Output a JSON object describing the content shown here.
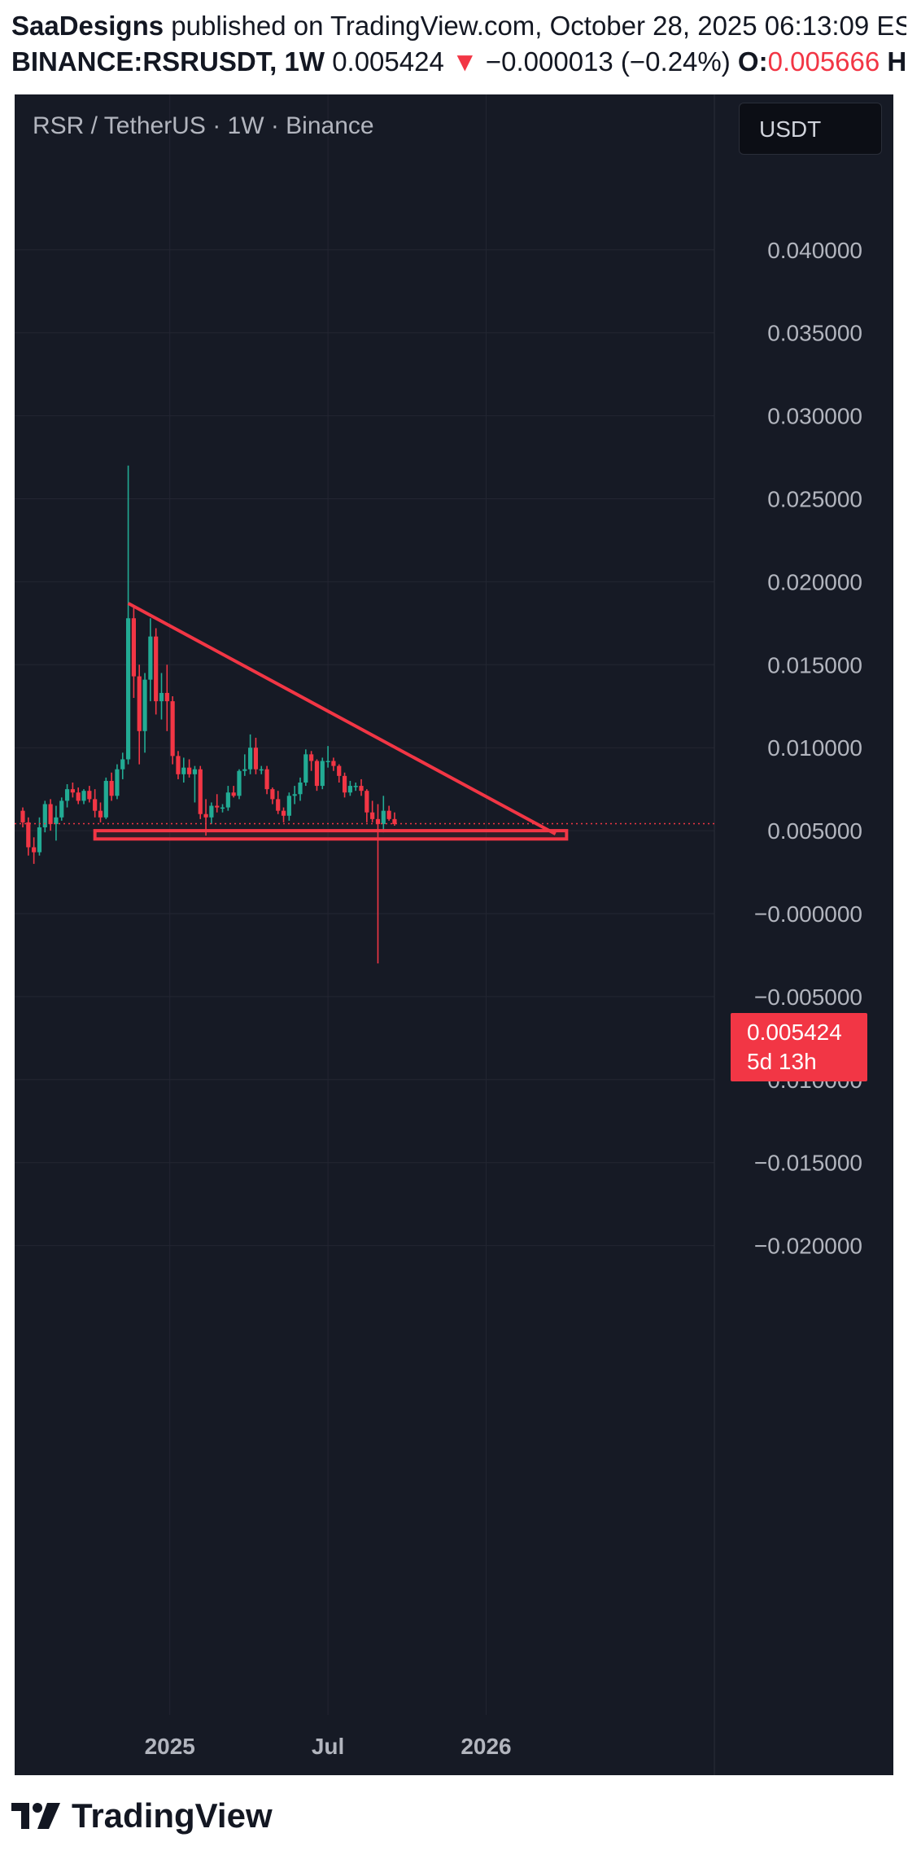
{
  "header": {
    "author": "SaaDesigns",
    "published_text": "published on TradingView.com, October 28, 2025 06:13:09 ES",
    "symbol": "BINANCE:RSRUSDT, 1W",
    "last_price": "0.005424",
    "change_arrow": "▼",
    "change": "−0.000013 (−0.24%)",
    "open_label": "O:",
    "open_value": "0.005666",
    "high_label": "H"
  },
  "chart": {
    "legend": "RSR / TetherUS · 1W · Binance",
    "currency_button": "USDT",
    "current_price": "0.005424",
    "countdown": "5d 13h",
    "colors": {
      "up": "#22ab94",
      "down": "#f23645",
      "background": "#161a25",
      "annotation": "#f23645"
    }
  },
  "chart_data": {
    "type": "candlestick",
    "interval": "1W",
    "y_axis": {
      "ticks": [
        "0.040000",
        "0.035000",
        "0.030000",
        "0.025000",
        "0.020000",
        "0.015000",
        "0.010000",
        "0.005000",
        "−0.000000",
        "−0.005000",
        "−0.010000",
        "−0.015000",
        "−0.020000"
      ]
    },
    "x_axis": {
      "ticks": [
        "2025",
        "Jul",
        "2026"
      ]
    },
    "grid": true,
    "last_price": 0.005424,
    "candles": [
      {
        "o": 0.0062,
        "h": 0.0064,
        "l": 0.0052,
        "c": 0.0055
      },
      {
        "o": 0.0055,
        "h": 0.0058,
        "l": 0.0035,
        "c": 0.004
      },
      {
        "o": 0.004,
        "h": 0.0046,
        "l": 0.003,
        "c": 0.0037
      },
      {
        "o": 0.0037,
        "h": 0.0058,
        "l": 0.0035,
        "c": 0.0052
      },
      {
        "o": 0.0052,
        "h": 0.0068,
        "l": 0.0049,
        "c": 0.0066
      },
      {
        "o": 0.0066,
        "h": 0.0069,
        "l": 0.005,
        "c": 0.0054
      },
      {
        "o": 0.0054,
        "h": 0.0065,
        "l": 0.0044,
        "c": 0.0058
      },
      {
        "o": 0.0058,
        "h": 0.007,
        "l": 0.0056,
        "c": 0.0068
      },
      {
        "o": 0.0068,
        "h": 0.0078,
        "l": 0.0064,
        "c": 0.0075
      },
      {
        "o": 0.0075,
        "h": 0.0079,
        "l": 0.007,
        "c": 0.0073
      },
      {
        "o": 0.0073,
        "h": 0.0076,
        "l": 0.0066,
        "c": 0.0068
      },
      {
        "o": 0.0068,
        "h": 0.0075,
        "l": 0.0066,
        "c": 0.0074
      },
      {
        "o": 0.0074,
        "h": 0.0077,
        "l": 0.0067,
        "c": 0.0069
      },
      {
        "o": 0.0069,
        "h": 0.0075,
        "l": 0.0058,
        "c": 0.0062
      },
      {
        "o": 0.0062,
        "h": 0.0067,
        "l": 0.0055,
        "c": 0.0058
      },
      {
        "o": 0.0058,
        "h": 0.0082,
        "l": 0.0057,
        "c": 0.008
      },
      {
        "o": 0.008,
        "h": 0.0085,
        "l": 0.0068,
        "c": 0.0071
      },
      {
        "o": 0.0071,
        "h": 0.009,
        "l": 0.0069,
        "c": 0.0087
      },
      {
        "o": 0.0087,
        "h": 0.0097,
        "l": 0.0081,
        "c": 0.0093
      },
      {
        "o": 0.0093,
        "h": 0.027,
        "l": 0.009,
        "c": 0.0178
      },
      {
        "o": 0.0178,
        "h": 0.0185,
        "l": 0.013,
        "c": 0.0143
      },
      {
        "o": 0.0143,
        "h": 0.015,
        "l": 0.009,
        "c": 0.011
      },
      {
        "o": 0.011,
        "h": 0.0145,
        "l": 0.0097,
        "c": 0.0141
      },
      {
        "o": 0.0141,
        "h": 0.0178,
        "l": 0.0128,
        "c": 0.0167
      },
      {
        "o": 0.0167,
        "h": 0.0172,
        "l": 0.012,
        "c": 0.0128
      },
      {
        "o": 0.0128,
        "h": 0.0145,
        "l": 0.0117,
        "c": 0.0133
      },
      {
        "o": 0.0133,
        "h": 0.015,
        "l": 0.011,
        "c": 0.0128
      },
      {
        "o": 0.0128,
        "h": 0.0131,
        "l": 0.009,
        "c": 0.0095
      },
      {
        "o": 0.0095,
        "h": 0.0098,
        "l": 0.0081,
        "c": 0.0084
      },
      {
        "o": 0.0084,
        "h": 0.0094,
        "l": 0.0079,
        "c": 0.0088
      },
      {
        "o": 0.0088,
        "h": 0.0093,
        "l": 0.0082,
        "c": 0.0084
      },
      {
        "o": 0.0084,
        "h": 0.0089,
        "l": 0.0067,
        "c": 0.0087
      },
      {
        "o": 0.0087,
        "h": 0.0089,
        "l": 0.0057,
        "c": 0.006
      },
      {
        "o": 0.006,
        "h": 0.0069,
        "l": 0.0047,
        "c": 0.0058
      },
      {
        "o": 0.0058,
        "h": 0.0067,
        "l": 0.0054,
        "c": 0.0065
      },
      {
        "o": 0.0065,
        "h": 0.0072,
        "l": 0.0061,
        "c": 0.0064
      },
      {
        "o": 0.0064,
        "h": 0.0066,
        "l": 0.0061,
        "c": 0.0064
      },
      {
        "o": 0.0064,
        "h": 0.0077,
        "l": 0.0062,
        "c": 0.0073
      },
      {
        "o": 0.0073,
        "h": 0.0077,
        "l": 0.007,
        "c": 0.0071
      },
      {
        "o": 0.0071,
        "h": 0.0087,
        "l": 0.0069,
        "c": 0.0086
      },
      {
        "o": 0.0086,
        "h": 0.0096,
        "l": 0.0083,
        "c": 0.0087
      },
      {
        "o": 0.0087,
        "h": 0.0108,
        "l": 0.0084,
        "c": 0.01
      },
      {
        "o": 0.01,
        "h": 0.0106,
        "l": 0.0084,
        "c": 0.0087
      },
      {
        "o": 0.0087,
        "h": 0.0089,
        "l": 0.0084,
        "c": 0.0087
      },
      {
        "o": 0.0087,
        "h": 0.0089,
        "l": 0.0072,
        "c": 0.0075
      },
      {
        "o": 0.0075,
        "h": 0.0076,
        "l": 0.0066,
        "c": 0.0069
      },
      {
        "o": 0.0069,
        "h": 0.0074,
        "l": 0.006,
        "c": 0.0062
      },
      {
        "o": 0.0062,
        "h": 0.0064,
        "l": 0.0055,
        "c": 0.0059
      },
      {
        "o": 0.0059,
        "h": 0.0073,
        "l": 0.0056,
        "c": 0.0071
      },
      {
        "o": 0.0071,
        "h": 0.0077,
        "l": 0.0066,
        "c": 0.0072
      },
      {
        "o": 0.0072,
        "h": 0.0082,
        "l": 0.0068,
        "c": 0.0079
      },
      {
        "o": 0.0079,
        "h": 0.0099,
        "l": 0.0077,
        "c": 0.0096
      },
      {
        "o": 0.0096,
        "h": 0.0098,
        "l": 0.0086,
        "c": 0.0092
      },
      {
        "o": 0.0092,
        "h": 0.0093,
        "l": 0.0074,
        "c": 0.0077
      },
      {
        "o": 0.0077,
        "h": 0.0094,
        "l": 0.0075,
        "c": 0.0092
      },
      {
        "o": 0.0092,
        "h": 0.0101,
        "l": 0.0088,
        "c": 0.0092
      },
      {
        "o": 0.0092,
        "h": 0.0094,
        "l": 0.0086,
        "c": 0.0089
      },
      {
        "o": 0.0089,
        "h": 0.009,
        "l": 0.0079,
        "c": 0.0083
      },
      {
        "o": 0.0083,
        "h": 0.0085,
        "l": 0.007,
        "c": 0.0073
      },
      {
        "o": 0.0073,
        "h": 0.008,
        "l": 0.0071,
        "c": 0.0077
      },
      {
        "o": 0.0077,
        "h": 0.0079,
        "l": 0.0074,
        "c": 0.0077
      },
      {
        "o": 0.0077,
        "h": 0.0081,
        "l": 0.0071,
        "c": 0.0074
      },
      {
        "o": 0.0074,
        "h": 0.0075,
        "l": 0.0055,
        "c": 0.0061
      },
      {
        "o": 0.0061,
        "h": 0.0068,
        "l": 0.0055,
        "c": 0.0057
      },
      {
        "o": 0.0057,
        "h": 0.0066,
        "l": -0.003,
        "c": 0.0054
      },
      {
        "o": 0.0054,
        "h": 0.0071,
        "l": 0.0049,
        "c": 0.0062
      },
      {
        "o": 0.0062,
        "h": 0.0065,
        "l": 0.0056,
        "c": 0.0057
      },
      {
        "o": 0.0057,
        "h": 0.0061,
        "l": 0.0053,
        "c": 0.0054
      }
    ],
    "annotations": [
      {
        "type": "trend_line",
        "from": {
          "candle": 19,
          "price": 0.0187
        },
        "to": {
          "candle": 96,
          "price": 0.0048
        }
      },
      {
        "type": "support_zone",
        "candle_start": 13,
        "candle_end": 98,
        "price_top": 0.005,
        "price_bottom": 0.0045
      }
    ]
  },
  "footer": {
    "logo_text": "TradingView"
  }
}
